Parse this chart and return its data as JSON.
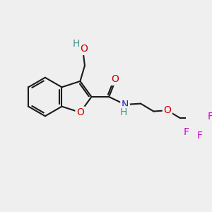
{
  "background_color": "#efefef",
  "bond_color": "#1a1a1a",
  "bond_width": 1.5,
  "atoms": {
    "O": "#cc0000",
    "N": "#2222cc",
    "F": "#cc00cc",
    "H": "#4a9090",
    "C": "#1a1a1a"
  },
  "font_size": 10
}
